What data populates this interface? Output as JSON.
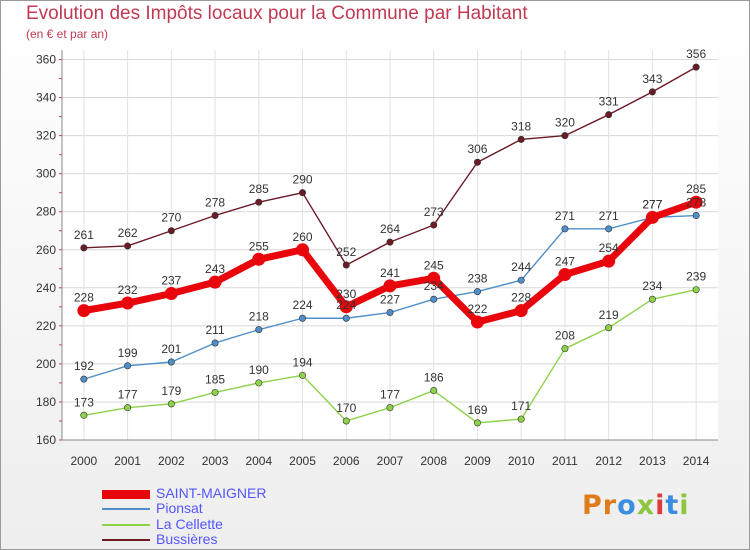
{
  "header": {
    "title": "Evolution des Impôts locaux pour la Commune par Habitant",
    "subtitle": "(en € et par an)"
  },
  "logo": {
    "text": "Proxiti",
    "colors": [
      "#e07b1c",
      "#e07b1c",
      "#3a8de0",
      "#8ec63f",
      "#e03a3a",
      "#3a8de0",
      "#8ec63f"
    ]
  },
  "chart_data": {
    "type": "line",
    "x": [
      2000,
      2001,
      2002,
      2003,
      2004,
      2005,
      2006,
      2007,
      2008,
      2009,
      2010,
      2011,
      2012,
      2013,
      2014
    ],
    "ylim": [
      160,
      365
    ],
    "yticks": [
      160,
      180,
      200,
      220,
      240,
      260,
      280,
      300,
      320,
      340,
      360
    ],
    "grid": true,
    "legend": "bottom-left",
    "series": [
      {
        "name": "SAINT-MAIGNER",
        "color": "#e8050c",
        "labelColor": "#5555ff",
        "values": [
          228,
          232,
          237,
          243,
          255,
          260,
          230,
          241,
          245,
          222,
          228,
          247,
          254,
          277,
          285
        ]
      },
      {
        "name": "Pionsat",
        "color": "#4f8fc8",
        "labelColor": "#5555ff",
        "values": [
          192,
          199,
          201,
          211,
          218,
          224,
          224,
          227,
          234,
          238,
          244,
          271,
          271,
          277,
          278
        ]
      },
      {
        "name": "La Cellette",
        "color": "#8ed24a",
        "labelColor": "#5555ff",
        "values": [
          173,
          177,
          179,
          185,
          190,
          194,
          170,
          177,
          186,
          169,
          171,
          208,
          219,
          234,
          239
        ]
      },
      {
        "name": "Bussières",
        "color": "#6b1a26",
        "labelColor": "#5555ff",
        "values": [
          261,
          262,
          270,
          278,
          285,
          290,
          252,
          264,
          273,
          306,
          318,
          320,
          331,
          343,
          356
        ]
      }
    ]
  }
}
